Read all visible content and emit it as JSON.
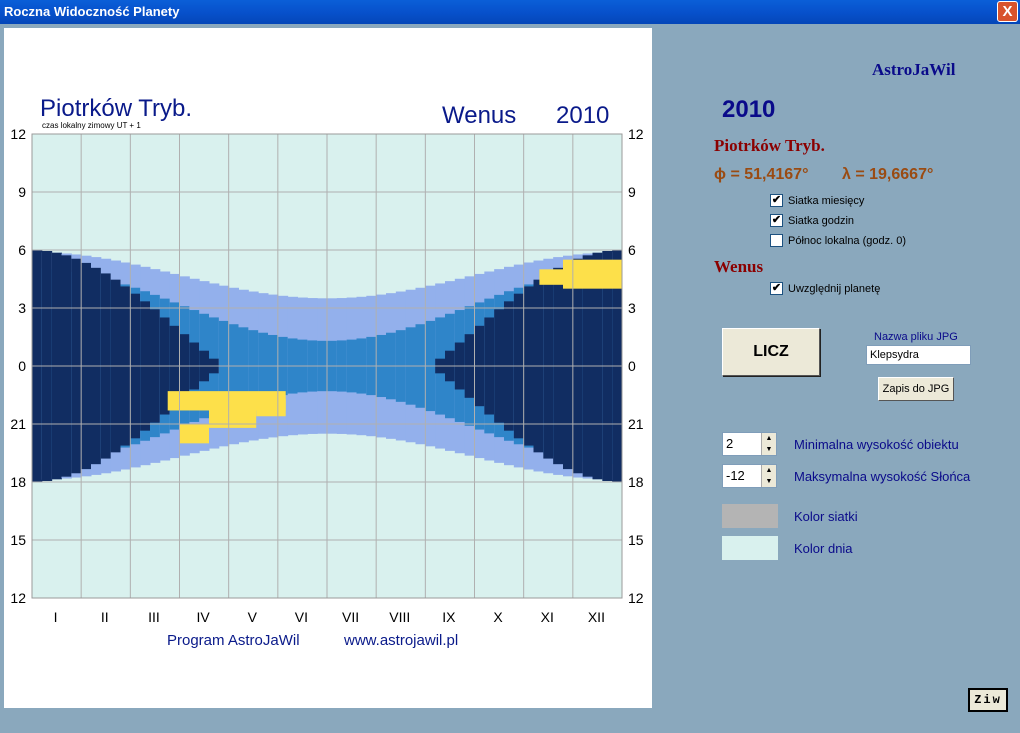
{
  "window": {
    "title": "Roczna Widoczność Planety",
    "close_label": "X"
  },
  "chart": {
    "location": "Piotrków Tryb.",
    "time_note": "czas lokalny zimowy   UT + 1",
    "planet": "Wenus",
    "year": "2010",
    "hour_labels": [
      "12",
      "9",
      "6",
      "3",
      "0",
      "21",
      "18",
      "15",
      "12"
    ],
    "month_labels": [
      "I",
      "II",
      "III",
      "IV",
      "V",
      "VI",
      "VII",
      "VIII",
      "IX",
      "X",
      "XI",
      "XII"
    ],
    "footer_program": "Program  AstroJaWil",
    "footer_url": "www.astrojawil.pl",
    "colors": {
      "day": "#d9f1ee",
      "twilight_light": "#93b0ec",
      "twilight_mid": "#2f85c9",
      "night": "#112d62",
      "planet": "#fde04a",
      "grid": "#b0b0b0"
    }
  },
  "panel": {
    "brand": "AstroJaWil",
    "year": "2010",
    "location": "Piotrków Tryb.",
    "phi_label": "ϕ = 51,4167°",
    "lambda_label": "λ = 19,6667°",
    "checkboxes": [
      {
        "label": "Siatka miesięcy",
        "checked": "✔"
      },
      {
        "label": "Siatka godzin",
        "checked": "✔"
      },
      {
        "label": "Północ lokalna (godz. 0)",
        "checked": ""
      }
    ],
    "planet_name": "Wenus",
    "include_planet": {
      "label": "Uwzględnij planetę",
      "checked": "✔"
    },
    "compute_button": "LICZ",
    "file_label": "Nazwa pliku JPG",
    "file_value": "Klepsydra",
    "save_button": "Zapis do JPG",
    "min_height": {
      "value": "2",
      "label": "Minimalna wysokość obiektu"
    },
    "max_sun_height": {
      "value": "-12",
      "label": "Maksymalna wysokość Słońca"
    },
    "grid_color": {
      "label": "Kolor siatki",
      "color": "#b4b4b4"
    },
    "day_color": {
      "label": "Kolor dnia",
      "color": "#d9f1ee"
    },
    "ziw_button": "Ziw"
  }
}
